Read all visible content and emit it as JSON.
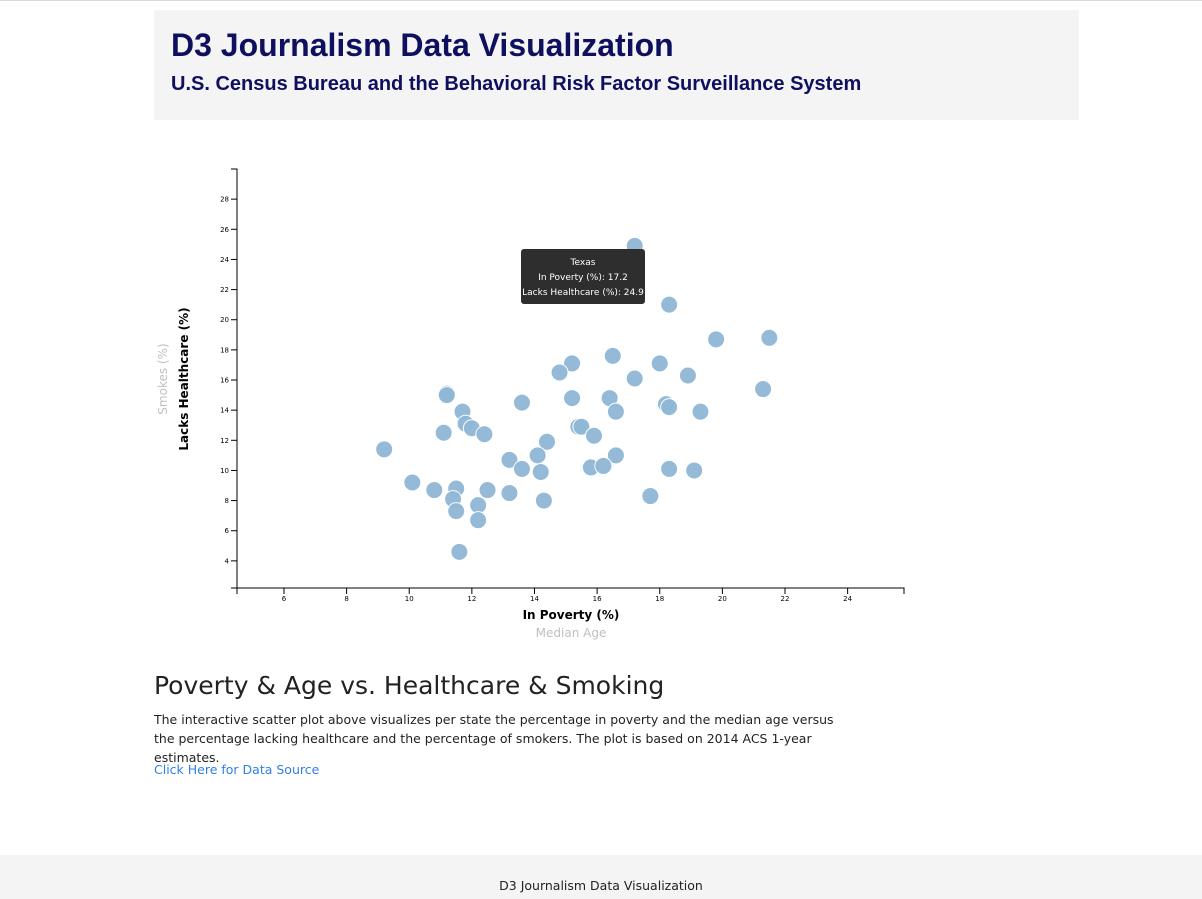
{
  "header": {
    "title": "D3 Journalism Data Visualization",
    "subtitle": "U.S. Census Bureau and the Behavioral Risk Factor Surveillance System"
  },
  "colors": {
    "header_text": "#0f0f5f",
    "marker": "#8fb7d6",
    "link": "#2f7fe8",
    "tooltip_bg": "#2e2e2e"
  },
  "chart_data": {
    "type": "scatter",
    "title": "",
    "xlabel": "In Poverty (%)",
    "ylabel": "Lacks Healthcare (%)",
    "x_alt_label": "Median Age",
    "y_alt_label": "Smokes (%)",
    "xlim": [
      4.5,
      25.8
    ],
    "ylim": [
      2.2,
      30.0
    ],
    "x_ticks": [
      6,
      8,
      10,
      12,
      14,
      16,
      18,
      20,
      22,
      24
    ],
    "y_ticks": [
      4,
      6,
      8,
      10,
      12,
      14,
      16,
      18,
      20,
      22,
      24,
      26,
      28
    ],
    "grid": false,
    "points": [
      {
        "x": 17.2,
        "y": 24.9
      },
      {
        "x": 18.3,
        "y": 21.0
      },
      {
        "x": 19.8,
        "y": 18.7
      },
      {
        "x": 21.5,
        "y": 18.8
      },
      {
        "x": 16.5,
        "y": 17.6
      },
      {
        "x": 15.2,
        "y": 17.1
      },
      {
        "x": 18.0,
        "y": 17.1
      },
      {
        "x": 14.8,
        "y": 16.5
      },
      {
        "x": 17.2,
        "y": 16.1
      },
      {
        "x": 18.9,
        "y": 16.3
      },
      {
        "x": 21.3,
        "y": 15.4
      },
      {
        "x": 11.2,
        "y": 15.1
      },
      {
        "x": 11.2,
        "y": 15.0
      },
      {
        "x": 13.6,
        "y": 14.5
      },
      {
        "x": 15.2,
        "y": 14.8
      },
      {
        "x": 16.4,
        "y": 14.8
      },
      {
        "x": 18.2,
        "y": 14.4
      },
      {
        "x": 18.3,
        "y": 14.2
      },
      {
        "x": 19.3,
        "y": 13.9
      },
      {
        "x": 16.6,
        "y": 13.9
      },
      {
        "x": 11.7,
        "y": 13.9
      },
      {
        "x": 11.8,
        "y": 13.1
      },
      {
        "x": 12.0,
        "y": 12.8
      },
      {
        "x": 11.1,
        "y": 12.5
      },
      {
        "x": 12.4,
        "y": 12.4
      },
      {
        "x": 15.4,
        "y": 12.9
      },
      {
        "x": 15.5,
        "y": 12.9
      },
      {
        "x": 15.9,
        "y": 12.3
      },
      {
        "x": 14.4,
        "y": 11.9
      },
      {
        "x": 9.2,
        "y": 11.4
      },
      {
        "x": 14.1,
        "y": 11.0
      },
      {
        "x": 16.6,
        "y": 11.0
      },
      {
        "x": 13.2,
        "y": 10.7
      },
      {
        "x": 13.6,
        "y": 10.1
      },
      {
        "x": 14.2,
        "y": 9.9
      },
      {
        "x": 15.8,
        "y": 10.2
      },
      {
        "x": 16.2,
        "y": 10.3
      },
      {
        "x": 18.3,
        "y": 10.1
      },
      {
        "x": 19.1,
        "y": 10.0
      },
      {
        "x": 10.1,
        "y": 9.2
      },
      {
        "x": 10.8,
        "y": 8.7
      },
      {
        "x": 11.5,
        "y": 8.8
      },
      {
        "x": 11.4,
        "y": 8.1
      },
      {
        "x": 12.5,
        "y": 8.7
      },
      {
        "x": 13.2,
        "y": 8.5
      },
      {
        "x": 12.2,
        "y": 7.7
      },
      {
        "x": 14.3,
        "y": 8.0
      },
      {
        "x": 17.7,
        "y": 8.3
      },
      {
        "x": 11.5,
        "y": 7.3
      },
      {
        "x": 12.2,
        "y": 6.7
      },
      {
        "x": 11.6,
        "y": 4.6
      }
    ]
  },
  "tooltip": {
    "state": "Texas",
    "line1": "In Poverty (%): 17.2",
    "line2": "Lacks Healthcare (%): 24.9"
  },
  "article": {
    "title": "Poverty & Age vs. Healthcare & Smoking",
    "body": "The interactive scatter plot above visualizes per state the percentage in poverty and the median age versus the percentage lacking healthcare and the percentage of smokers. The plot is based on 2014 ACS 1-year estimates.",
    "link_text": "Click Here for Data Source"
  },
  "footer": {
    "text": "D3 Journalism Data Visualization"
  }
}
